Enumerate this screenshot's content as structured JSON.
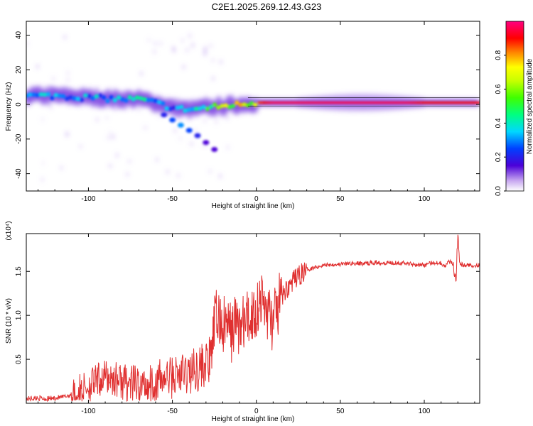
{
  "title": "C2E1.2025.269.12.43.G23",
  "chart_data": [
    {
      "type": "heatmap",
      "xlabel": "Height of straight line (km)",
      "ylabel": "Frequency (Hz)",
      "xlim": [
        -137,
        133
      ],
      "ylim": [
        -50,
        48
      ],
      "xticks": [
        -100,
        -50,
        0,
        50,
        100
      ],
      "yticks": [
        -40,
        -20,
        0,
        20,
        40
      ],
      "colorbar": {
        "label": "Normalized spectral amplitude",
        "range": [
          0,
          1
        ],
        "ticks": [
          "0.0",
          "0.2",
          "0.4",
          "0.6",
          "0.8"
        ]
      },
      "ridge": {
        "x": [
          -137,
          -120,
          -100,
          -80,
          -70,
          -60,
          -50,
          -40,
          -30,
          -20,
          -10,
          0,
          10,
          30,
          50,
          70,
          90,
          100,
          110,
          120,
          133
        ],
        "frequency": [
          5,
          5,
          4,
          3,
          3,
          1,
          -2,
          -3,
          -2,
          -1,
          0,
          1,
          1,
          1,
          1,
          1,
          1,
          1,
          1,
          1,
          1
        ],
        "amplitude": [
          0.3,
          0.35,
          0.35,
          0.35,
          0.4,
          0.35,
          0.3,
          0.35,
          0.5,
          0.7,
          0.8,
          0.85,
          0.95,
          0.95,
          0.95,
          0.95,
          0.95,
          0.9,
          0.9,
          0.9,
          0.9
        ]
      },
      "secondary_trace": {
        "x": [
          -55,
          -50,
          -45,
          -40,
          -35,
          -30,
          -25
        ],
        "frequency": [
          -6,
          -9,
          -12,
          -15,
          -18,
          -22,
          -26
        ],
        "amplitude": [
          0.2,
          0.25,
          0.3,
          0.25,
          0.2,
          0.15,
          0.15
        ]
      }
    },
    {
      "type": "line",
      "xlabel": "Height of straight line (km)",
      "ylabel": "SNR (10 * v/v)",
      "yscale_label": "(x10⁴)",
      "xlim": [
        -137,
        133
      ],
      "ylim": [
        0,
        1.93
      ],
      "xticks": [
        -100,
        -50,
        0,
        50,
        100
      ],
      "yticks": [
        "0.5",
        "1.0",
        "1.5"
      ],
      "series": [
        {
          "name": "SNR",
          "color": "#e03030",
          "x": [
            -137,
            -130,
            -125,
            -120,
            -115,
            -110,
            -105,
            -100,
            -95,
            -90,
            -85,
            -80,
            -75,
            -70,
            -65,
            -60,
            -55,
            -50,
            -45,
            -40,
            -35,
            -30,
            -27,
            -25,
            -23,
            -20,
            -18,
            -15,
            -12,
            -10,
            -8,
            -5,
            -3,
            0,
            2,
            5,
            8,
            10,
            13,
            15,
            18,
            20,
            25,
            30,
            35,
            40,
            45,
            50,
            55,
            60,
            65,
            70,
            75,
            80,
            85,
            90,
            95,
            100,
            105,
            110,
            112,
            115,
            117,
            119,
            120,
            121,
            123,
            125,
            130,
            133
          ],
          "y": [
            0.05,
            0.06,
            0.05,
            0.06,
            0.07,
            0.1,
            0.15,
            0.2,
            0.25,
            0.3,
            0.28,
            0.25,
            0.22,
            0.2,
            0.22,
            0.25,
            0.28,
            0.3,
            0.32,
            0.35,
            0.4,
            0.45,
            0.5,
            0.9,
            1.0,
            0.85,
            0.9,
            0.8,
            0.95,
            0.85,
            0.9,
            0.95,
            1.0,
            1.05,
            1.2,
            1.1,
            1.0,
            0.9,
            1.1,
            1.2,
            1.3,
            1.35,
            1.45,
            1.52,
            1.55,
            1.57,
            1.58,
            1.58,
            1.59,
            1.59,
            1.59,
            1.6,
            1.6,
            1.6,
            1.6,
            1.59,
            1.58,
            1.57,
            1.6,
            1.6,
            1.55,
            1.62,
            1.58,
            1.45,
            1.95,
            1.6,
            1.57,
            1.57,
            1.57,
            1.57
          ]
        }
      ]
    }
  ]
}
